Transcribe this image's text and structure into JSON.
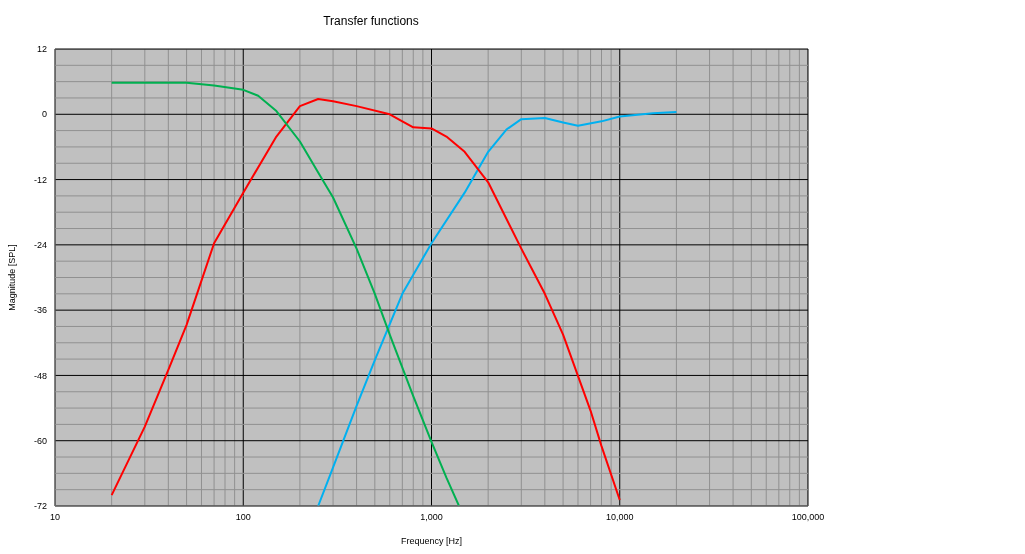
{
  "chart_data": {
    "type": "line",
    "title": "Transfer functions",
    "xlabel": "Frequency [Hz]",
    "ylabel": "Magnitude [SPL]",
    "log": "x",
    "grid": true,
    "legend": false,
    "xlim": [
      10,
      100000
    ],
    "xticks": [
      10,
      {
        "value": 20,
        "label": null
      },
      {
        "value": 30,
        "label": null
      },
      {
        "value": 40,
        "label": null
      },
      {
        "value": 50,
        "label": null
      },
      {
        "value": 60,
        "label": null
      },
      {
        "value": 70,
        "label": null
      },
      {
        "value": 80,
        "label": null
      },
      {
        "value": 90,
        "label": null
      },
      100,
      {
        "value": 200,
        "label": null
      },
      {
        "value": 300,
        "label": null
      },
      {
        "value": 400,
        "label": null
      },
      {
        "value": 500,
        "label": null
      },
      {
        "value": 600,
        "label": null
      },
      {
        "value": 700,
        "label": null
      },
      {
        "value": 800,
        "label": null
      },
      {
        "value": 900,
        "label": null
      },
      {
        "value": 1000,
        "label": "1,000"
      },
      {
        "value": 2000,
        "label": null
      },
      {
        "value": 3000,
        "label": null
      },
      {
        "value": 4000,
        "label": null
      },
      {
        "value": 5000,
        "label": null
      },
      {
        "value": 6000,
        "label": null
      },
      {
        "value": 7000,
        "label": null
      },
      {
        "value": 8000,
        "label": null
      },
      {
        "value": 9000,
        "label": null
      },
      {
        "value": 10000,
        "label": "10,000"
      },
      {
        "value": 20000,
        "label": null
      },
      {
        "value": 30000,
        "label": null
      },
      {
        "value": 40000,
        "label": null
      },
      {
        "value": 50000,
        "label": null
      },
      {
        "value": 60000,
        "label": null
      },
      {
        "value": 70000,
        "label": null
      },
      {
        "value": 80000,
        "label": null
      },
      {
        "value": 90000,
        "label": null
      },
      {
        "value": 100000,
        "label": "100,000"
      }
    ],
    "ylim": [
      -72,
      12
    ],
    "yticks": [
      -72,
      {
        "value": -69,
        "label": null
      },
      {
        "value": -66,
        "label": null
      },
      {
        "value": -63,
        "label": null
      },
      -60,
      {
        "value": -57,
        "label": null
      },
      {
        "value": -54,
        "label": null
      },
      {
        "value": -51,
        "label": null
      },
      -48,
      {
        "value": -45,
        "label": null
      },
      {
        "value": -42,
        "label": null
      },
      {
        "value": -39,
        "label": null
      },
      -36,
      {
        "value": -33,
        "label": null
      },
      {
        "value": -30,
        "label": null
      },
      {
        "value": -27,
        "label": null
      },
      -24,
      {
        "value": -21,
        "label": null
      },
      {
        "value": -18,
        "label": null
      },
      {
        "value": -15,
        "label": null
      },
      -12,
      {
        "value": -9,
        "label": null
      },
      {
        "value": -6,
        "label": null
      },
      {
        "value": -3,
        "label": null
      },
      0,
      {
        "value": 3,
        "label": null
      },
      {
        "value": 6,
        "label": null
      },
      {
        "value": 9,
        "label": null
      },
      12
    ],
    "series": [
      {
        "color": "#00b0f0",
        "x": [
          250,
          300,
          400,
          500,
          700,
          1000,
          1500,
          2000,
          2500,
          3000,
          4000,
          5000,
          6000,
          8000,
          10000,
          15000,
          20000
        ],
        "values": [
          -72,
          -64.9,
          -53.6,
          -45.2,
          -33,
          -23.7,
          -14.4,
          -6.9,
          -2.8,
          -0.9,
          -0.7,
          -1.5,
          -2.1,
          -1.3,
          -0.4,
          0.2,
          0.4
        ]
      },
      {
        "color": "#ff0000",
        "x": [
          20,
          30,
          40,
          50,
          70,
          100,
          150,
          200,
          250,
          300,
          400,
          600,
          700,
          800,
          1000,
          1200,
          1500,
          2000,
          3000,
          4000,
          5000,
          7000,
          8000,
          10000
        ],
        "values": [
          -70,
          -57.4,
          -47,
          -38.7,
          -23.7,
          -14.4,
          -4.1,
          1.5,
          2.8,
          2.4,
          1.5,
          0,
          -1.3,
          -2.4,
          -2.6,
          -4.1,
          -6.9,
          -12.5,
          -24.7,
          -33,
          -40.5,
          -54.5,
          -61,
          -70.9
        ]
      },
      {
        "color": "#00b050",
        "x": [
          20,
          50,
          70,
          100,
          120,
          150,
          200,
          250,
          300,
          400,
          500,
          600,
          800,
          1000,
          1200,
          1400
        ],
        "values": [
          5.8,
          5.8,
          5.3,
          4.5,
          3.4,
          0.6,
          -5,
          -10.7,
          -15.3,
          -24.7,
          -33,
          -40.5,
          -51.8,
          -60.2,
          -66.8,
          -72
        ]
      }
    ]
  }
}
